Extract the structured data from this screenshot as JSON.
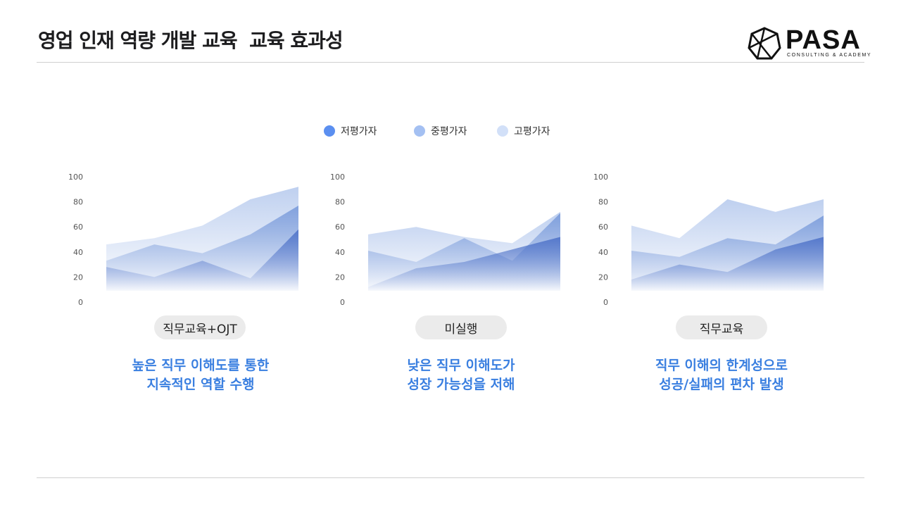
{
  "title": "영업 인재 역량 개발 교육  교육 효과성",
  "logo": {
    "word": "PASA",
    "sub": "CONSULTING & ACADEMY"
  },
  "legend": [
    {
      "label": "저평가자",
      "color": "#5b8ff0"
    },
    {
      "label": "중평가자",
      "color": "#a4c0f2"
    },
    {
      "label": "고평가자",
      "color": "#d2e0f8"
    }
  ],
  "colors": {
    "low": "#4a6fc7",
    "mid": "#6a8fd6",
    "high": "#a9c0ea",
    "accent": "#3a7fe0"
  },
  "chart_data": [
    {
      "type": "area",
      "ylim": [
        0,
        100
      ],
      "yticks": [
        0,
        20,
        40,
        60,
        80,
        100
      ],
      "series": [
        {
          "name": "고평가자",
          "values": [
            46,
            51,
            61,
            82,
            92
          ]
        },
        {
          "name": "중평가자",
          "values": [
            33,
            46,
            39,
            54,
            77
          ]
        },
        {
          "name": "저평가자",
          "values": [
            28,
            20,
            33,
            19,
            58
          ]
        }
      ],
      "label": "직무교육+OJT",
      "caption": [
        "높은 직무 이해도를 통한",
        "지속적인 역할 수행"
      ]
    },
    {
      "type": "area",
      "ylim": [
        0,
        100
      ],
      "yticks": [
        0,
        20,
        40,
        60,
        80,
        100
      ],
      "series": [
        {
          "name": "고평가자",
          "values": [
            54,
            60,
            52,
            47,
            72
          ]
        },
        {
          "name": "중평가자",
          "values": [
            41,
            32,
            51,
            33,
            71
          ]
        },
        {
          "name": "저평가자",
          "values": [
            12,
            27,
            32,
            42,
            52
          ]
        }
      ],
      "label": "미실행",
      "caption": [
        "낮은 직무 이해도가",
        "성장 가능성을 저해"
      ]
    },
    {
      "type": "area",
      "ylim": [
        0,
        100
      ],
      "yticks": [
        0,
        20,
        40,
        60,
        80,
        100
      ],
      "series": [
        {
          "name": "고평가자",
          "values": [
            61,
            51,
            82,
            72,
            82
          ]
        },
        {
          "name": "중평가자",
          "values": [
            41,
            36,
            51,
            46,
            69
          ]
        },
        {
          "name": "저평가자",
          "values": [
            18,
            30,
            24,
            42,
            52
          ]
        }
      ],
      "label": "직무교육",
      "caption": [
        "직무 이해의 한계성으로",
        "성공/실패의 편차 발생"
      ]
    }
  ]
}
